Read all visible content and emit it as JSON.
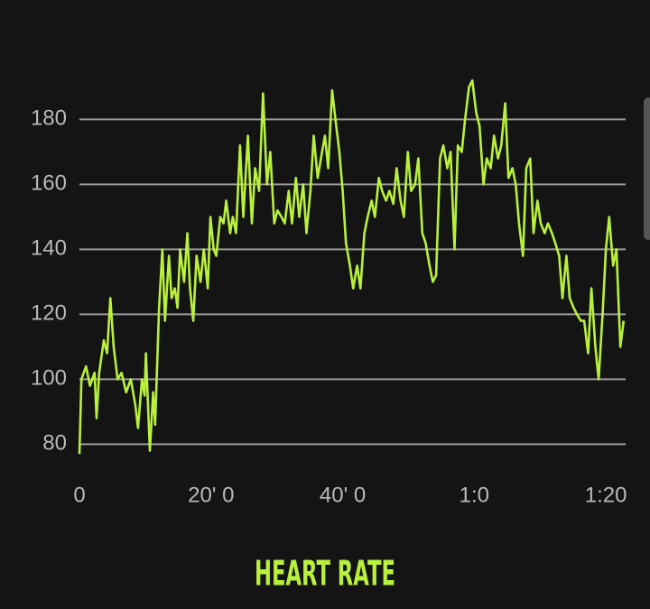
{
  "chart_data": {
    "type": "line",
    "title": "HEART RATE",
    "color": "#b8f03c",
    "grid": true,
    "x": [
      0,
      0.3,
      1.0,
      1.6,
      2.3,
      2.6,
      3.0,
      3.7,
      4.2,
      4.7,
      5.2,
      5.8,
      6.4,
      7.1,
      7.8,
      8.5,
      8.9,
      9.5,
      9.9,
      10.1,
      10.7,
      11.2,
      11.5,
      12.1,
      12.6,
      13.0,
      13.6,
      14.0,
      14.5,
      14.9,
      15.3,
      15.9,
      16.4,
      16.8,
      17.3,
      17.8,
      18.4,
      18.9,
      19.5,
      19.9,
      20.4,
      20.8,
      21.4,
      21.9,
      22.3,
      22.9,
      23.3,
      23.8,
      24.4,
      24.9,
      25.6,
      26.2,
      26.7,
      27.3,
      27.9,
      28.5,
      29.0,
      29.6,
      30.1,
      30.7,
      31.2,
      31.8,
      32.3,
      32.9,
      33.4,
      34.0,
      34.5,
      35.1,
      35.6,
      36.2,
      36.7,
      37.3,
      37.8,
      38.4,
      38.9,
      39.5,
      40.0,
      40.5,
      41.1,
      41.6,
      42.2,
      42.7,
      43.3,
      43.8,
      44.4,
      44.9,
      45.5,
      46.0,
      46.6,
      47.1,
      47.7,
      48.2,
      48.8,
      49.3,
      49.9,
      50.4,
      51.0,
      51.5,
      52.1,
      52.6,
      53.2,
      53.7,
      54.2,
      54.8,
      55.3,
      55.9,
      56.4,
      57.0,
      57.5,
      58.1,
      58.6,
      59.2,
      59.7,
      60.3,
      60.8,
      61.4,
      61.9,
      62.5,
      63.0,
      63.6,
      64.1,
      64.7,
      65.2,
      65.8,
      66.3,
      66.8,
      67.4,
      67.9,
      68.5,
      69.0,
      69.6,
      70.1,
      70.7,
      71.2,
      71.8,
      72.3,
      72.9,
      73.4,
      74.0,
      74.5,
      75.1,
      75.6,
      76.2,
      76.7,
      77.3,
      77.8,
      78.4,
      78.9,
      79.5,
      80.0,
      80.5,
      81.1,
      81.6,
      82.2,
      82.7
    ],
    "values": [
      77,
      100,
      104,
      98,
      102,
      88,
      102,
      112,
      108,
      125,
      110,
      100,
      102,
      96,
      100,
      92,
      85,
      100,
      95,
      108,
      78,
      96,
      86,
      122,
      140,
      118,
      138,
      125,
      128,
      122,
      140,
      130,
      145,
      128,
      118,
      138,
      130,
      140,
      128,
      150,
      140,
      138,
      150,
      148,
      155,
      145,
      150,
      145,
      172,
      150,
      175,
      148,
      165,
      158,
      188,
      160,
      170,
      148,
      152,
      150,
      148,
      158,
      148,
      162,
      150,
      160,
      145,
      158,
      175,
      162,
      168,
      175,
      165,
      189,
      180,
      170,
      158,
      142,
      135,
      128,
      135,
      128,
      145,
      150,
      155,
      150,
      162,
      158,
      155,
      158,
      154,
      165,
      155,
      150,
      170,
      158,
      160,
      168,
      145,
      142,
      135,
      130,
      132,
      168,
      172,
      165,
      170,
      140,
      172,
      170,
      180,
      190,
      192,
      182,
      178,
      160,
      168,
      165,
      175,
      168,
      172,
      185,
      162,
      165,
      160,
      148,
      138,
      165,
      168,
      145,
      155,
      148,
      145,
      148,
      145,
      142,
      138,
      125,
      138,
      125,
      122,
      120,
      118,
      118,
      108,
      128,
      110,
      100,
      120,
      140,
      150,
      135,
      140,
      110,
      118
    ],
    "xlim": [
      0,
      83
    ],
    "xticks": [
      {
        "value": 0,
        "label": "0"
      },
      {
        "value": 20,
        "label": "20' 0"
      },
      {
        "value": 40,
        "label": "40' 0"
      },
      {
        "value": 60,
        "label": "1:0"
      },
      {
        "value": 80,
        "label": "1:20"
      }
    ],
    "ylim": [
      74,
      194
    ],
    "yticks": [
      80,
      100,
      120,
      140,
      160,
      180
    ]
  }
}
